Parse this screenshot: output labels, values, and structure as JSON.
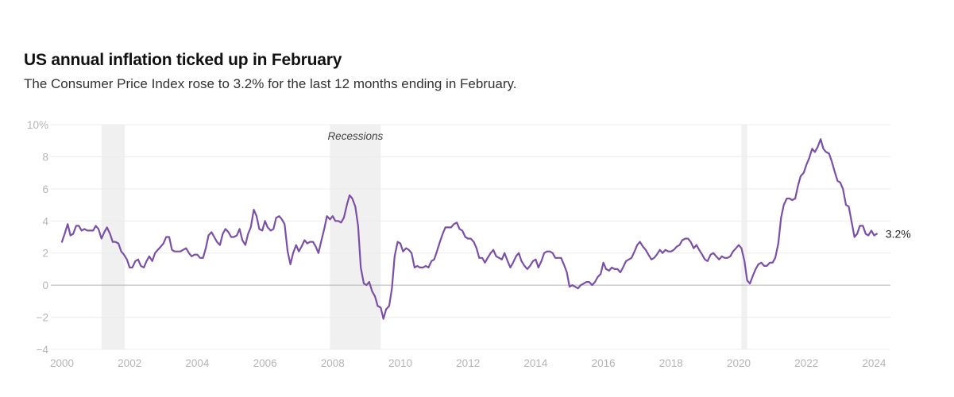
{
  "header": {
    "title": "US annual inflation ticked up in February",
    "subtitle": "The Consumer Price Index rose to 3.2% for the last 12 months ending in February."
  },
  "chart_data": {
    "type": "line",
    "title": "US annual inflation ticked up in February",
    "subtitle": "The Consumer Price Index rose to 3.2% for the last 12 months ending in February.",
    "xlabel": "",
    "ylabel": "",
    "xlim": [
      2000,
      2024.2
    ],
    "ylim": [
      -4,
      10
    ],
    "x_ticks": [
      "2000",
      "2002",
      "2004",
      "2006",
      "2008",
      "2010",
      "2012",
      "2014",
      "2016",
      "2018",
      "2020",
      "2022",
      "2024"
    ],
    "y_ticks": [
      "10%",
      "8",
      "6",
      "4",
      "2",
      "0",
      "−2",
      "−4"
    ],
    "grid": true,
    "line_color": "#7b4fa8",
    "recession_color": "#f0f0f0",
    "recession_label": "Recessions",
    "recessions": [
      [
        2001.17,
        2001.86
      ],
      [
        2007.92,
        2009.42
      ],
      [
        2020.08,
        2020.25
      ]
    ],
    "end_label": "3.2%",
    "series": [
      {
        "x": [
          2000.0,
          2000.08,
          2000.17,
          2000.25,
          2000.33,
          2000.42,
          2000.5,
          2000.58,
          2000.67,
          2000.75,
          2000.83,
          2000.92,
          2001.0,
          2001.08,
          2001.17,
          2001.25,
          2001.33,
          2001.42,
          2001.5,
          2001.58,
          2001.67,
          2001.75,
          2001.83,
          2001.92,
          2002.0,
          2002.08,
          2002.17,
          2002.25,
          2002.33,
          2002.42,
          2002.5,
          2002.58,
          2002.67,
          2002.75,
          2002.83,
          2002.92,
          2003.0,
          2003.08,
          2003.17,
          2003.25,
          2003.33,
          2003.42,
          2003.5,
          2003.58,
          2003.67,
          2003.75,
          2003.83,
          2003.92,
          2004.0,
          2004.08,
          2004.17,
          2004.25,
          2004.33,
          2004.42,
          2004.5,
          2004.58,
          2004.67,
          2004.75,
          2004.83,
          2004.92,
          2005.0,
          2005.08,
          2005.17,
          2005.25,
          2005.33,
          2005.42,
          2005.5,
          2005.58,
          2005.67,
          2005.75,
          2005.83,
          2005.92,
          2006.0,
          2006.08,
          2006.17,
          2006.25,
          2006.33,
          2006.42,
          2006.5,
          2006.58,
          2006.67,
          2006.75,
          2006.83,
          2006.92,
          2007.0,
          2007.08,
          2007.17,
          2007.25,
          2007.33,
          2007.42,
          2007.5,
          2007.58,
          2007.67,
          2007.75,
          2007.83,
          2007.92,
          2008.0,
          2008.08,
          2008.17,
          2008.25,
          2008.33,
          2008.42,
          2008.5,
          2008.58,
          2008.67,
          2008.75,
          2008.83,
          2008.92,
          2009.0,
          2009.08,
          2009.17,
          2009.25,
          2009.33,
          2009.42,
          2009.5,
          2009.58,
          2009.67,
          2009.75,
          2009.83,
          2009.92,
          2010.0,
          2010.08,
          2010.17,
          2010.25,
          2010.33,
          2010.42,
          2010.5,
          2010.58,
          2010.67,
          2010.75,
          2010.83,
          2010.92,
          2011.0,
          2011.08,
          2011.17,
          2011.25,
          2011.33,
          2011.42,
          2011.5,
          2011.58,
          2011.67,
          2011.75,
          2011.83,
          2011.92,
          2012.0,
          2012.08,
          2012.17,
          2012.25,
          2012.33,
          2012.42,
          2012.5,
          2012.58,
          2012.67,
          2012.75,
          2012.83,
          2012.92,
          2013.0,
          2013.08,
          2013.17,
          2013.25,
          2013.33,
          2013.42,
          2013.5,
          2013.58,
          2013.67,
          2013.75,
          2013.83,
          2013.92,
          2014.0,
          2014.08,
          2014.17,
          2014.25,
          2014.33,
          2014.42,
          2014.5,
          2014.58,
          2014.67,
          2014.75,
          2014.83,
          2014.92,
          2015.0,
          2015.08,
          2015.17,
          2015.25,
          2015.33,
          2015.42,
          2015.5,
          2015.58,
          2015.67,
          2015.75,
          2015.83,
          2015.92,
          2016.0,
          2016.08,
          2016.17,
          2016.25,
          2016.33,
          2016.42,
          2016.5,
          2016.58,
          2016.67,
          2016.75,
          2016.83,
          2016.92,
          2017.0,
          2017.08,
          2017.17,
          2017.25,
          2017.33,
          2017.42,
          2017.5,
          2017.58,
          2017.67,
          2017.75,
          2017.83,
          2017.92,
          2018.0,
          2018.08,
          2018.17,
          2018.25,
          2018.33,
          2018.42,
          2018.5,
          2018.58,
          2018.67,
          2018.75,
          2018.83,
          2018.92,
          2019.0,
          2019.08,
          2019.17,
          2019.25,
          2019.33,
          2019.42,
          2019.5,
          2019.58,
          2019.67,
          2019.75,
          2019.83,
          2019.92,
          2020.0,
          2020.08,
          2020.17,
          2020.25,
          2020.33,
          2020.42,
          2020.5,
          2020.58,
          2020.67,
          2020.75,
          2020.83,
          2020.92,
          2021.0,
          2021.08,
          2021.17,
          2021.25,
          2021.33,
          2021.42,
          2021.5,
          2021.58,
          2021.67,
          2021.75,
          2021.83,
          2021.92,
          2022.0,
          2022.08,
          2022.17,
          2022.25,
          2022.33,
          2022.42,
          2022.5,
          2022.58,
          2022.67,
          2022.75,
          2022.83,
          2022.92,
          2023.0,
          2023.08,
          2023.17,
          2023.25,
          2023.33,
          2023.42,
          2023.5,
          2023.58,
          2023.67,
          2023.75,
          2023.83,
          2023.92,
          2024.0,
          2024.08
        ],
        "y": [
          2.7,
          3.2,
          3.8,
          3.1,
          3.2,
          3.7,
          3.7,
          3.4,
          3.5,
          3.4,
          3.4,
          3.4,
          3.7,
          3.5,
          2.9,
          3.3,
          3.6,
          3.2,
          2.7,
          2.7,
          2.6,
          2.1,
          1.9,
          1.6,
          1.1,
          1.1,
          1.5,
          1.6,
          1.2,
          1.1,
          1.5,
          1.8,
          1.5,
          2.0,
          2.2,
          2.4,
          2.6,
          3.0,
          3.0,
          2.2,
          2.1,
          2.1,
          2.1,
          2.2,
          2.3,
          2.0,
          1.8,
          1.9,
          1.9,
          1.7,
          1.7,
          2.3,
          3.1,
          3.3,
          3.0,
          2.7,
          2.5,
          3.2,
          3.5,
          3.3,
          3.0,
          3.0,
          3.1,
          3.5,
          2.8,
          2.5,
          3.2,
          3.6,
          4.7,
          4.3,
          3.5,
          3.4,
          4.0,
          3.6,
          3.4,
          3.5,
          4.2,
          4.3,
          4.1,
          3.8,
          2.1,
          1.3,
          2.0,
          2.5,
          2.1,
          2.4,
          2.8,
          2.6,
          2.7,
          2.7,
          2.4,
          2.0,
          2.8,
          3.5,
          4.3,
          4.1,
          4.3,
          4.0,
          4.0,
          3.9,
          4.2,
          5.0,
          5.6,
          5.4,
          4.9,
          3.7,
          1.1,
          0.1,
          0.0,
          0.2,
          -0.4,
          -0.7,
          -1.3,
          -1.4,
          -2.1,
          -1.5,
          -1.3,
          -0.2,
          1.8,
          2.7,
          2.6,
          2.1,
          2.3,
          2.2,
          2.0,
          1.1,
          1.2,
          1.1,
          1.1,
          1.2,
          1.1,
          1.5,
          1.6,
          2.1,
          2.7,
          3.2,
          3.6,
          3.6,
          3.6,
          3.8,
          3.9,
          3.5,
          3.4,
          3.0,
          2.9,
          2.9,
          2.7,
          2.3,
          1.7,
          1.7,
          1.4,
          1.7,
          2.0,
          2.2,
          1.8,
          1.7,
          1.6,
          2.0,
          1.5,
          1.1,
          1.4,
          1.8,
          2.0,
          1.5,
          1.2,
          1.0,
          1.2,
          1.5,
          1.6,
          1.1,
          1.5,
          2.0,
          2.1,
          2.1,
          2.0,
          1.7,
          1.7,
          1.7,
          1.3,
          0.8,
          -0.1,
          0.0,
          -0.1,
          -0.2,
          0.0,
          0.1,
          0.2,
          0.2,
          0.0,
          0.2,
          0.5,
          0.7,
          1.4,
          1.0,
          0.9,
          1.1,
          1.0,
          1.0,
          0.8,
          1.1,
          1.5,
          1.6,
          1.7,
          2.1,
          2.5,
          2.7,
          2.4,
          2.2,
          1.9,
          1.6,
          1.7,
          1.9,
          2.2,
          2.0,
          2.2,
          2.1,
          2.1,
          2.2,
          2.4,
          2.5,
          2.8,
          2.9,
          2.9,
          2.7,
          2.3,
          2.5,
          2.2,
          1.9,
          1.6,
          1.5,
          1.9,
          2.0,
          1.8,
          1.6,
          1.8,
          1.7,
          1.7,
          1.8,
          2.1,
          2.3,
          2.5,
          2.3,
          1.5,
          0.3,
          0.1,
          0.6,
          1.0,
          1.3,
          1.4,
          1.2,
          1.2,
          1.4,
          1.4,
          1.7,
          2.6,
          4.2,
          5.0,
          5.4,
          5.4,
          5.3,
          5.4,
          6.2,
          6.8,
          7.0,
          7.5,
          7.9,
          8.5,
          8.3,
          8.6,
          9.1,
          8.5,
          8.3,
          8.2,
          7.7,
          7.1,
          6.5,
          6.4,
          6.0,
          5.0,
          4.9,
          4.0,
          3.0,
          3.2,
          3.7,
          3.7,
          3.2,
          3.1,
          3.4,
          3.1,
          3.2
        ]
      }
    ]
  }
}
